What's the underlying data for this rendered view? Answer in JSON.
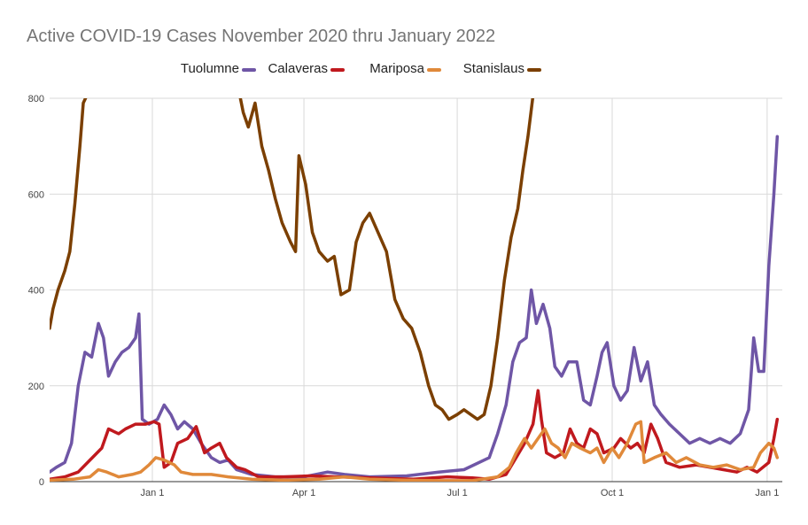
{
  "chart_data": {
    "type": "line",
    "title": "Active COVID-19 Cases November 2020 thru January 2022",
    "xlabel": "",
    "ylabel": "",
    "x_domain": [
      "2020-11-01",
      "2022-01-10"
    ],
    "ylim": [
      0,
      800
    ],
    "y_ticks": [
      0,
      200,
      400,
      600,
      800
    ],
    "x_ticks": [
      {
        "date": "2021-01-01",
        "label": "Jan 1"
      },
      {
        "date": "2021-04-01",
        "label": "Apr 1"
      },
      {
        "date": "2021-07-01",
        "label": "Jul 1"
      },
      {
        "date": "2021-10-01",
        "label": "Oct 1"
      },
      {
        "date": "2022-01-01",
        "label": "Jan 1"
      }
    ],
    "grid": true,
    "legend_position": "top",
    "series": [
      {
        "name": "Tuolumne",
        "color": "#6f56a6",
        "points": [
          [
            "2020-11-01",
            20
          ],
          [
            "2020-11-05",
            30
          ],
          [
            "2020-11-10",
            40
          ],
          [
            "2020-11-14",
            80
          ],
          [
            "2020-11-18",
            200
          ],
          [
            "2020-11-22",
            270
          ],
          [
            "2020-11-26",
            260
          ],
          [
            "2020-11-30",
            330
          ],
          [
            "2020-12-03",
            300
          ],
          [
            "2020-12-06",
            220
          ],
          [
            "2020-12-10",
            250
          ],
          [
            "2020-12-14",
            270
          ],
          [
            "2020-12-18",
            280
          ],
          [
            "2020-12-22",
            300
          ],
          [
            "2020-12-24",
            350
          ],
          [
            "2020-12-26",
            130
          ],
          [
            "2020-12-30",
            120
          ],
          [
            "2021-01-04",
            130
          ],
          [
            "2021-01-08",
            160
          ],
          [
            "2021-01-12",
            140
          ],
          [
            "2021-01-16",
            110
          ],
          [
            "2021-01-20",
            125
          ],
          [
            "2021-01-25",
            110
          ],
          [
            "2021-01-30",
            80
          ],
          [
            "2021-02-05",
            50
          ],
          [
            "2021-02-10",
            40
          ],
          [
            "2021-02-15",
            45
          ],
          [
            "2021-02-20",
            25
          ],
          [
            "2021-03-01",
            15
          ],
          [
            "2021-03-15",
            10
          ],
          [
            "2021-04-01",
            10
          ],
          [
            "2021-04-15",
            20
          ],
          [
            "2021-04-25",
            15
          ],
          [
            "2021-05-10",
            10
          ],
          [
            "2021-06-01",
            12
          ],
          [
            "2021-06-20",
            20
          ],
          [
            "2021-07-05",
            25
          ],
          [
            "2021-07-20",
            50
          ],
          [
            "2021-07-25",
            100
          ],
          [
            "2021-07-30",
            160
          ],
          [
            "2021-08-03",
            250
          ],
          [
            "2021-08-07",
            290
          ],
          [
            "2021-08-11",
            300
          ],
          [
            "2021-08-14",
            400
          ],
          [
            "2021-08-17",
            330
          ],
          [
            "2021-08-21",
            370
          ],
          [
            "2021-08-25",
            320
          ],
          [
            "2021-08-28",
            240
          ],
          [
            "2021-09-01",
            220
          ],
          [
            "2021-09-05",
            250
          ],
          [
            "2021-09-10",
            250
          ],
          [
            "2021-09-14",
            170
          ],
          [
            "2021-09-18",
            160
          ],
          [
            "2021-09-22",
            220
          ],
          [
            "2021-09-25",
            270
          ],
          [
            "2021-09-28",
            290
          ],
          [
            "2021-10-02",
            200
          ],
          [
            "2021-10-06",
            170
          ],
          [
            "2021-10-10",
            190
          ],
          [
            "2021-10-14",
            280
          ],
          [
            "2021-10-18",
            210
          ],
          [
            "2021-10-22",
            250
          ],
          [
            "2021-10-26",
            160
          ],
          [
            "2021-10-30",
            140
          ],
          [
            "2021-11-04",
            120
          ],
          [
            "2021-11-10",
            100
          ],
          [
            "2021-11-16",
            80
          ],
          [
            "2021-11-22",
            90
          ],
          [
            "2021-11-28",
            80
          ],
          [
            "2021-12-04",
            90
          ],
          [
            "2021-12-10",
            80
          ],
          [
            "2021-12-16",
            100
          ],
          [
            "2021-12-21",
            150
          ],
          [
            "2021-12-24",
            300
          ],
          [
            "2021-12-27",
            230
          ],
          [
            "2021-12-30",
            230
          ],
          [
            "2022-01-02",
            450
          ],
          [
            "2022-01-05",
            600
          ],
          [
            "2022-01-07",
            720
          ]
        ]
      },
      {
        "name": "Calaveras",
        "color": "#c0191e",
        "points": [
          [
            "2020-11-01",
            5
          ],
          [
            "2020-11-10",
            10
          ],
          [
            "2020-11-18",
            20
          ],
          [
            "2020-11-25",
            45
          ],
          [
            "2020-12-02",
            70
          ],
          [
            "2020-12-06",
            110
          ],
          [
            "2020-12-12",
            100
          ],
          [
            "2020-12-16",
            110
          ],
          [
            "2020-12-22",
            120
          ],
          [
            "2020-12-28",
            120
          ],
          [
            "2021-01-02",
            125
          ],
          [
            "2021-01-05",
            120
          ],
          [
            "2021-01-08",
            30
          ],
          [
            "2021-01-12",
            40
          ],
          [
            "2021-01-16",
            80
          ],
          [
            "2021-01-22",
            90
          ],
          [
            "2021-01-27",
            115
          ],
          [
            "2021-02-01",
            60
          ],
          [
            "2021-02-05",
            70
          ],
          [
            "2021-02-10",
            80
          ],
          [
            "2021-02-14",
            50
          ],
          [
            "2021-02-20",
            30
          ],
          [
            "2021-02-25",
            25
          ],
          [
            "2021-03-05",
            10
          ],
          [
            "2021-03-20",
            10
          ],
          [
            "2021-04-05",
            12
          ],
          [
            "2021-04-20",
            10
          ],
          [
            "2021-05-10",
            8
          ],
          [
            "2021-06-05",
            5
          ],
          [
            "2021-06-25",
            10
          ],
          [
            "2021-07-10",
            8
          ],
          [
            "2021-07-20",
            5
          ],
          [
            "2021-07-30",
            15
          ],
          [
            "2021-08-05",
            50
          ],
          [
            "2021-08-10",
            80
          ],
          [
            "2021-08-15",
            120
          ],
          [
            "2021-08-18",
            190
          ],
          [
            "2021-08-20",
            130
          ],
          [
            "2021-08-23",
            60
          ],
          [
            "2021-08-28",
            50
          ],
          [
            "2021-09-02",
            60
          ],
          [
            "2021-09-06",
            110
          ],
          [
            "2021-09-10",
            80
          ],
          [
            "2021-09-14",
            70
          ],
          [
            "2021-09-18",
            110
          ],
          [
            "2021-09-22",
            100
          ],
          [
            "2021-09-26",
            60
          ],
          [
            "2021-10-02",
            70
          ],
          [
            "2021-10-06",
            90
          ],
          [
            "2021-10-12",
            70
          ],
          [
            "2021-10-16",
            80
          ],
          [
            "2021-10-20",
            60
          ],
          [
            "2021-10-24",
            120
          ],
          [
            "2021-10-28",
            90
          ],
          [
            "2021-11-02",
            40
          ],
          [
            "2021-11-10",
            30
          ],
          [
            "2021-11-20",
            35
          ],
          [
            "2021-11-28",
            30
          ],
          [
            "2021-12-06",
            25
          ],
          [
            "2021-12-14",
            20
          ],
          [
            "2021-12-20",
            30
          ],
          [
            "2021-12-26",
            20
          ],
          [
            "2022-01-02",
            40
          ],
          [
            "2022-01-05",
            90
          ],
          [
            "2022-01-07",
            130
          ]
        ]
      },
      {
        "name": "Mariposa",
        "color": "#e0893a",
        "points": [
          [
            "2020-11-01",
            3
          ],
          [
            "2020-11-15",
            5
          ],
          [
            "2020-11-25",
            10
          ],
          [
            "2020-11-30",
            25
          ],
          [
            "2020-12-05",
            20
          ],
          [
            "2020-12-12",
            10
          ],
          [
            "2020-12-20",
            15
          ],
          [
            "2020-12-25",
            20
          ],
          [
            "2020-12-30",
            35
          ],
          [
            "2021-01-03",
            50
          ],
          [
            "2021-01-08",
            45
          ],
          [
            "2021-01-14",
            35
          ],
          [
            "2021-01-18",
            20
          ],
          [
            "2021-01-25",
            15
          ],
          [
            "2021-02-05",
            15
          ],
          [
            "2021-02-15",
            10
          ],
          [
            "2021-03-01",
            5
          ],
          [
            "2021-03-20",
            3
          ],
          [
            "2021-04-10",
            5
          ],
          [
            "2021-04-25",
            10
          ],
          [
            "2021-05-10",
            5
          ],
          [
            "2021-06-01",
            3
          ],
          [
            "2021-06-20",
            2
          ],
          [
            "2021-07-10",
            2
          ],
          [
            "2021-07-25",
            10
          ],
          [
            "2021-08-01",
            30
          ],
          [
            "2021-08-05",
            60
          ],
          [
            "2021-08-10",
            90
          ],
          [
            "2021-08-14",
            70
          ],
          [
            "2021-08-18",
            90
          ],
          [
            "2021-08-22",
            110
          ],
          [
            "2021-08-26",
            80
          ],
          [
            "2021-08-30",
            70
          ],
          [
            "2021-09-03",
            50
          ],
          [
            "2021-09-07",
            80
          ],
          [
            "2021-09-12",
            70
          ],
          [
            "2021-09-18",
            60
          ],
          [
            "2021-09-22",
            70
          ],
          [
            "2021-09-26",
            40
          ],
          [
            "2021-10-01",
            70
          ],
          [
            "2021-10-05",
            50
          ],
          [
            "2021-10-10",
            80
          ],
          [
            "2021-10-15",
            120
          ],
          [
            "2021-10-18",
            125
          ],
          [
            "2021-10-20",
            40
          ],
          [
            "2021-10-26",
            50
          ],
          [
            "2021-11-02",
            60
          ],
          [
            "2021-11-08",
            40
          ],
          [
            "2021-11-14",
            50
          ],
          [
            "2021-11-22",
            35
          ],
          [
            "2021-11-30",
            30
          ],
          [
            "2021-12-08",
            35
          ],
          [
            "2021-12-16",
            25
          ],
          [
            "2021-12-24",
            30
          ],
          [
            "2021-12-28",
            60
          ],
          [
            "2022-01-02",
            80
          ],
          [
            "2022-01-05",
            70
          ],
          [
            "2022-01-07",
            50
          ]
        ]
      },
      {
        "name": "Stanislaus",
        "color": "#7b3f00",
        "points": [
          [
            "2020-11-01",
            320
          ],
          [
            "2020-11-03",
            360
          ],
          [
            "2020-11-06",
            400
          ],
          [
            "2020-11-10",
            440
          ],
          [
            "2020-11-13",
            480
          ],
          [
            "2020-11-16",
            580
          ],
          [
            "2020-11-19",
            700
          ],
          [
            "2020-11-21",
            790
          ],
          [
            "2020-11-23",
            805
          ],
          [
            "2021-02-22",
            805
          ],
          [
            "2021-02-24",
            770
          ],
          [
            "2021-02-27",
            740
          ],
          [
            "2021-03-03",
            790
          ],
          [
            "2021-03-07",
            700
          ],
          [
            "2021-03-11",
            650
          ],
          [
            "2021-03-15",
            590
          ],
          [
            "2021-03-19",
            540
          ],
          [
            "2021-03-24",
            500
          ],
          [
            "2021-03-27",
            480
          ],
          [
            "2021-03-29",
            680
          ],
          [
            "2021-04-02",
            620
          ],
          [
            "2021-04-06",
            520
          ],
          [
            "2021-04-10",
            480
          ],
          [
            "2021-04-15",
            460
          ],
          [
            "2021-04-19",
            470
          ],
          [
            "2021-04-23",
            390
          ],
          [
            "2021-04-28",
            400
          ],
          [
            "2021-05-02",
            500
          ],
          [
            "2021-05-06",
            540
          ],
          [
            "2021-05-10",
            560
          ],
          [
            "2021-05-15",
            520
          ],
          [
            "2021-05-20",
            480
          ],
          [
            "2021-05-25",
            380
          ],
          [
            "2021-05-30",
            340
          ],
          [
            "2021-06-04",
            320
          ],
          [
            "2021-06-09",
            270
          ],
          [
            "2021-06-14",
            200
          ],
          [
            "2021-06-18",
            160
          ],
          [
            "2021-06-22",
            150
          ],
          [
            "2021-06-26",
            130
          ],
          [
            "2021-07-01",
            140
          ],
          [
            "2021-07-05",
            150
          ],
          [
            "2021-07-09",
            140
          ],
          [
            "2021-07-13",
            130
          ],
          [
            "2021-07-17",
            140
          ],
          [
            "2021-07-21",
            200
          ],
          [
            "2021-07-25",
            300
          ],
          [
            "2021-07-29",
            420
          ],
          [
            "2021-08-02",
            510
          ],
          [
            "2021-08-06",
            570
          ],
          [
            "2021-08-09",
            650
          ],
          [
            "2021-08-12",
            720
          ],
          [
            "2021-08-15",
            805
          ]
        ]
      }
    ]
  }
}
